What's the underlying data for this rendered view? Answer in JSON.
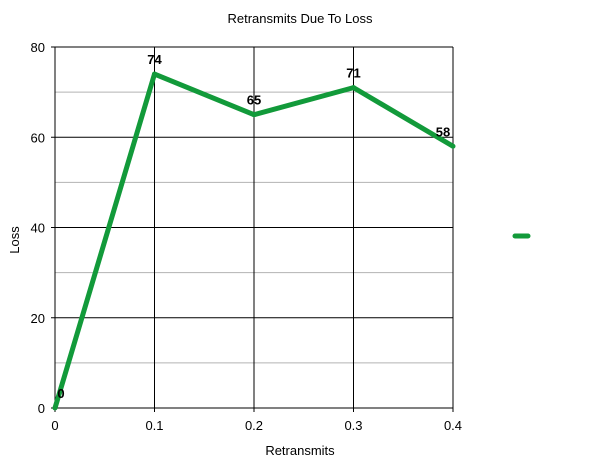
{
  "chart_data": {
    "type": "line",
    "title": "Retransmits Due To Loss",
    "xlabel": "Retransmits",
    "ylabel": "Loss",
    "x": [
      0,
      0.1,
      0.2,
      0.3,
      0.4
    ],
    "x_ticks": [
      "0",
      "0.1",
      "0.2",
      "0.3",
      "0.4"
    ],
    "xlim": [
      0,
      0.4
    ],
    "ylim": [
      0,
      80
    ],
    "y_ticks": [
      "0",
      "20",
      "40",
      "60",
      "80"
    ],
    "y_minor_step": 10,
    "grid": true,
    "legend": "right",
    "series": [
      {
        "name": "",
        "color": "#129a3a",
        "values": [
          0,
          74,
          65,
          71,
          58
        ],
        "labels": [
          "0",
          "74",
          "65",
          "71",
          "58"
        ]
      }
    ]
  }
}
